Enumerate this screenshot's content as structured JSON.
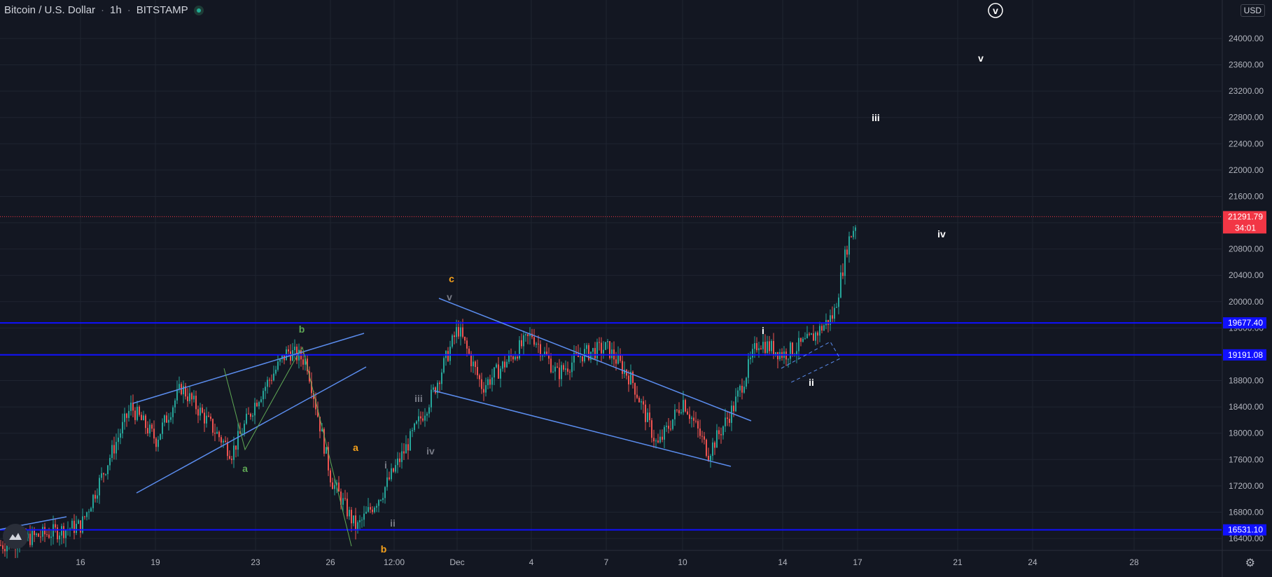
{
  "header": {
    "symbol": "Bitcoin / U.S. Dollar",
    "interval": "1h",
    "exchange": "BITSTAMP",
    "currency": "USD"
  },
  "colors": {
    "background": "#131722",
    "up": "#26a69a",
    "down": "#ef5350",
    "grid": "#1f2430",
    "hline": "#1010ff",
    "trendline": "#5b8def",
    "price_label": "#f23645"
  },
  "chart_data": {
    "type": "candlestick",
    "title": "Bitcoin / U.S. Dollar",
    "interval": "1h",
    "exchange": "BITSTAMP",
    "ylim": [
      16240,
      24500
    ],
    "y_ticks": [
      16400,
      16800,
      17200,
      17600,
      18000,
      18400,
      18800,
      19200,
      19600,
      20000,
      20400,
      20800,
      21200,
      21600,
      22000,
      22400,
      22800,
      23200,
      23600,
      24000
    ],
    "x_tick_labels": [
      "16",
      "19",
      "23",
      "26",
      "12:00",
      "Dec",
      "4",
      "7",
      "10",
      "14",
      "17",
      "21",
      "24",
      "28"
    ],
    "price_path": [
      {
        "t": "Nov 14",
        "p": 16300
      },
      {
        "t": "Nov 17",
        "p": 16600
      },
      {
        "t": "Nov 18",
        "p": 18400
      },
      {
        "t": "Nov 19",
        "p": 17900
      },
      {
        "t": "Nov 20",
        "p": 18700
      },
      {
        "t": "Nov 22",
        "p": 17700
      },
      {
        "t": "Nov 23",
        "p": 18500
      },
      {
        "t": "Nov 24",
        "p": 19250
      },
      {
        "t": "Nov 25",
        "p": 19100
      },
      {
        "t": "Nov 26",
        "p": 17300
      },
      {
        "t": "Nov 27",
        "p": 16550
      },
      {
        "t": "Nov 28",
        "p": 17100
      },
      {
        "t": "Nov 29",
        "p": 17800
      },
      {
        "t": "Nov 30",
        "p": 18600
      },
      {
        "t": "Dec 1",
        "p": 19600
      },
      {
        "t": "Dec 2",
        "p": 18700
      },
      {
        "t": "Dec 3",
        "p": 19100
      },
      {
        "t": "Dec 4",
        "p": 19500
      },
      {
        "t": "Dec 5",
        "p": 18900
      },
      {
        "t": "Dec 6",
        "p": 19200
      },
      {
        "t": "Dec 7",
        "p": 19300
      },
      {
        "t": "Dec 8",
        "p": 18800
      },
      {
        "t": "Dec 9",
        "p": 17800
      },
      {
        "t": "Dec 10",
        "p": 18500
      },
      {
        "t": "Dec 11",
        "p": 17700
      },
      {
        "t": "Dec 12",
        "p": 18400
      },
      {
        "t": "Dec 13",
        "p": 19400
      },
      {
        "t": "Dec 14",
        "p": 19200
      },
      {
        "t": "Dec 15",
        "p": 19400
      },
      {
        "t": "Dec 16",
        "p": 19800
      },
      {
        "t": "Dec 16 12:00",
        "p": 20900
      },
      {
        "t": "Dec 17",
        "p": 21292
      }
    ],
    "horizontal_levels": [
      {
        "value": 19677.4,
        "label": "19677.40"
      },
      {
        "value": 19191.08,
        "label": "19191.08"
      },
      {
        "value": 16531.1,
        "label": "16531.10"
      }
    ],
    "last_price": {
      "value": 21291.79,
      "label": "21291.79",
      "countdown": "34:01"
    },
    "wave_labels": [
      {
        "text": "a",
        "color": "#5fa855"
      },
      {
        "text": "b",
        "color": "#5fa855"
      },
      {
        "text": "a",
        "color": "#f7a21b"
      },
      {
        "text": "b",
        "color": "#f7a21b"
      },
      {
        "text": "c",
        "color": "#f7a21b"
      },
      {
        "text": "i",
        "color": "#787b86"
      },
      {
        "text": "ii",
        "color": "#787b86"
      },
      {
        "text": "iii",
        "color": "#787b86"
      },
      {
        "text": "iv",
        "color": "#787b86"
      },
      {
        "text": "v",
        "color": "#787b86"
      },
      {
        "text": "i",
        "color": "#ffffff"
      },
      {
        "text": "ii",
        "color": "#ffffff"
      },
      {
        "text": "iii",
        "color": "#ffffff"
      },
      {
        "text": "iv",
        "color": "#ffffff"
      },
      {
        "text": "v",
        "color": "#ffffff"
      },
      {
        "text": "v",
        "color": "#ffffff",
        "circled": true
      }
    ],
    "grid": true
  }
}
